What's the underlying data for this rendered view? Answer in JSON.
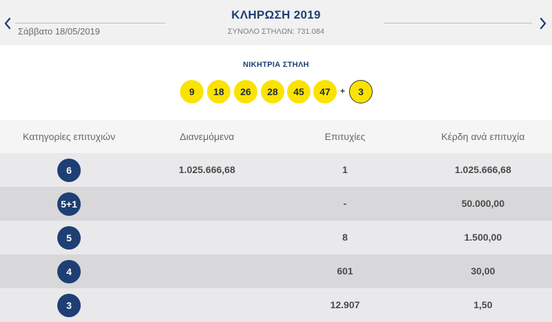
{
  "header": {
    "title": "ΚΛΗΡΩΣΗ 2019",
    "date": "Σάββατο 18/05/2019",
    "total_columns": "ΣΥΝΟΛΟ ΣΤΗΛΩΝ: 731.084",
    "prev_icon": "chevron-left-icon",
    "next_icon": "chevron-right-icon",
    "accent_color": "#1e3f74"
  },
  "winning": {
    "title": "ΝΙΚΗΤΡΙΑ ΣΤΗΛΗ",
    "numbers": [
      "9",
      "18",
      "26",
      "28",
      "45",
      "47"
    ],
    "plus": "+",
    "bonus": "3",
    "ball_color": "#fae300"
  },
  "table": {
    "headers": {
      "category": "Κατηγορίες επιτυχιών",
      "distributed": "Διανεμόμενα",
      "winners": "Επιτυχίες",
      "prize": "Κέρδη ανά επιτυχία"
    },
    "rows": [
      {
        "category": "6",
        "distributed": "1.025.666,68",
        "winners": "1",
        "prize": "1.025.666,68"
      },
      {
        "category": "5+1",
        "distributed": "",
        "winners": "-",
        "prize": "50.000,00"
      },
      {
        "category": "5",
        "distributed": "",
        "winners": "8",
        "prize": "1.500,00"
      },
      {
        "category": "4",
        "distributed": "",
        "winners": "601",
        "prize": "30,00"
      },
      {
        "category": "3",
        "distributed": "",
        "winners": "12.907",
        "prize": "1,50"
      }
    ]
  }
}
